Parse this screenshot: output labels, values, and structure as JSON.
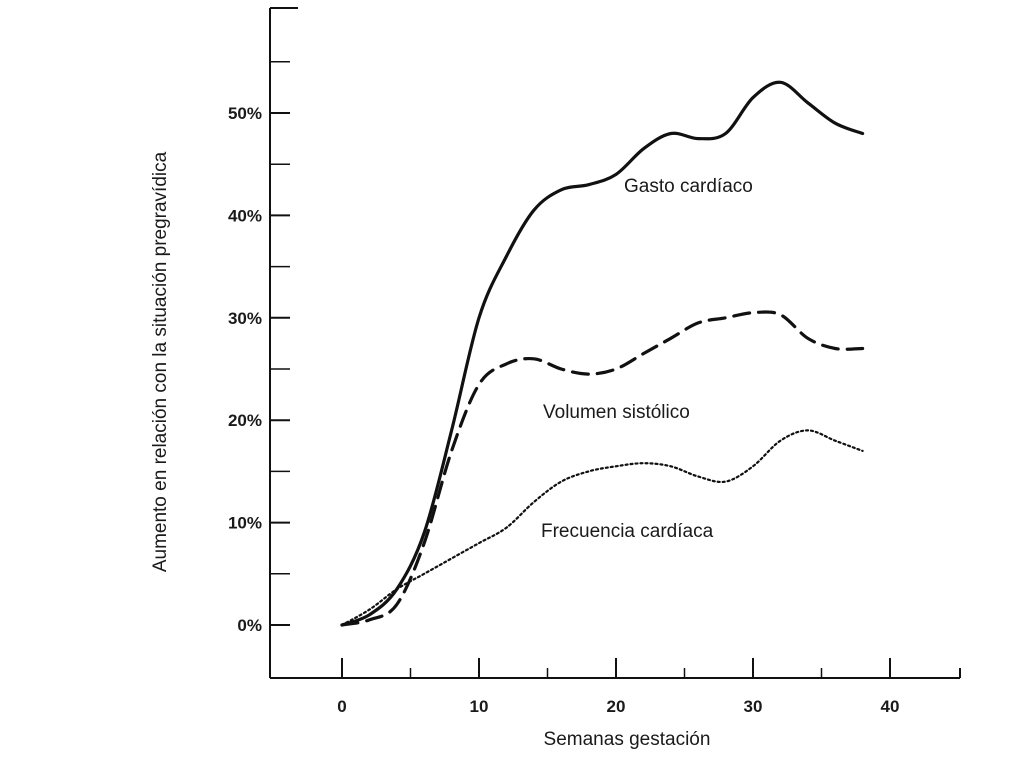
{
  "chart_data": {
    "type": "line",
    "title": "",
    "xlabel": "Semanas gestación",
    "ylabel": "Aumento en relación con la situación pregravídica",
    "xlim": [
      -5,
      45
    ],
    "ylim": [
      -5,
      60
    ],
    "x_ticks": [
      0,
      10,
      20,
      30,
      40
    ],
    "x_tick_labels": [
      "0",
      "10",
      "20",
      "30",
      "40"
    ],
    "x_minor_ticks": [
      5,
      15,
      25,
      35
    ],
    "y_ticks": [
      0,
      10,
      20,
      30,
      40,
      50
    ],
    "y_tick_labels": [
      "0%",
      "10%",
      "20%",
      "30%",
      "40%",
      "50%"
    ],
    "y_minor_ticks": [
      5,
      15,
      25,
      35,
      45,
      55
    ],
    "grid": false,
    "legend": "inline labels",
    "series": [
      {
        "name": "Gasto cardíaco",
        "style": "solid",
        "color": "#111111",
        "points": [
          [
            0,
            0
          ],
          [
            2,
            1
          ],
          [
            4,
            3.5
          ],
          [
            6,
            9
          ],
          [
            8,
            19
          ],
          [
            10,
            30
          ],
          [
            12,
            36
          ],
          [
            14,
            40.5
          ],
          [
            16,
            42.5
          ],
          [
            18,
            43
          ],
          [
            20,
            44
          ],
          [
            22,
            46.5
          ],
          [
            24,
            48
          ],
          [
            26,
            47.5
          ],
          [
            28,
            48
          ],
          [
            30,
            51.5
          ],
          [
            32,
            53
          ],
          [
            34,
            51
          ],
          [
            36,
            49
          ],
          [
            38,
            48
          ]
        ]
      },
      {
        "name": "Volumen sistólico",
        "style": "dashed",
        "color": "#111111",
        "points": [
          [
            0,
            0
          ],
          [
            2,
            0.5
          ],
          [
            4,
            2
          ],
          [
            6,
            8
          ],
          [
            8,
            17
          ],
          [
            10,
            23.5
          ],
          [
            12,
            25.5
          ],
          [
            14,
            26
          ],
          [
            16,
            25
          ],
          [
            18,
            24.5
          ],
          [
            20,
            25
          ],
          [
            22,
            26.5
          ],
          [
            24,
            28
          ],
          [
            26,
            29.5
          ],
          [
            28,
            30
          ],
          [
            30,
            30.5
          ],
          [
            32,
            30.3
          ],
          [
            34,
            28
          ],
          [
            36,
            27
          ],
          [
            38,
            27
          ]
        ]
      },
      {
        "name": "Frecuencia cardíaca",
        "style": "dotted",
        "color": "#111111",
        "points": [
          [
            0,
            0
          ],
          [
            2,
            1.5
          ],
          [
            4,
            3.5
          ],
          [
            6,
            5
          ],
          [
            8,
            6.5
          ],
          [
            10,
            8
          ],
          [
            12,
            9.5
          ],
          [
            14,
            12
          ],
          [
            16,
            14
          ],
          [
            18,
            15
          ],
          [
            20,
            15.5
          ],
          [
            22,
            15.8
          ],
          [
            24,
            15.5
          ],
          [
            26,
            14.5
          ],
          [
            28,
            14
          ],
          [
            30,
            15.5
          ],
          [
            32,
            18
          ],
          [
            34,
            19
          ],
          [
            36,
            18
          ],
          [
            38,
            17
          ]
        ]
      }
    ]
  }
}
